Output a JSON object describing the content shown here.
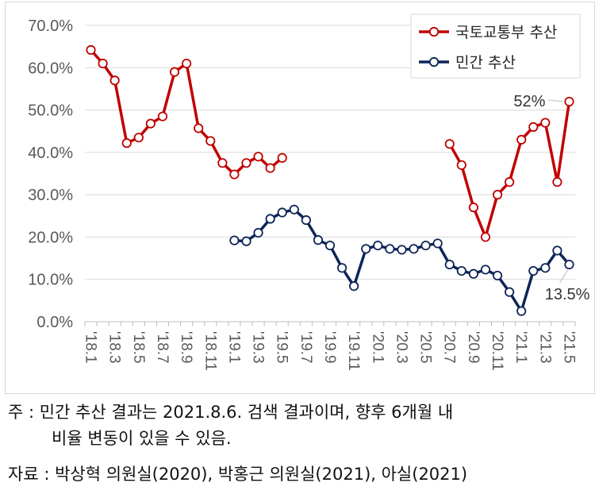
{
  "chart_data": {
    "type": "line",
    "x": [
      "'18.1",
      "'18.2",
      "'18.3",
      "'18.4",
      "'18.5",
      "'18.6",
      "'18.7",
      "'18.8",
      "'18.9",
      "'18.10",
      "'18.11",
      "'18.12",
      "'19.1",
      "'19.2",
      "'19.3",
      "'19.4",
      "'19.5",
      "'19.6",
      "'19.7",
      "'19.8",
      "'19.9",
      "'19.10",
      "'19.11",
      "'19.12",
      "'20.1",
      "'20.2",
      "'20.3",
      "'20.4",
      "'20.5",
      "'20.6",
      "'20.7",
      "'20.8",
      "'20.9",
      "'20.10",
      "'20.11",
      "'20.12",
      "'21.1",
      "'21.2",
      "'21.3",
      "'21.4",
      "'21.5"
    ],
    "x_tick_labels": [
      "'18.1",
      "'18.3",
      "'18.5",
      "'18.7",
      "'18.9",
      "'18.11",
      "'19.1",
      "'19.3",
      "'19.5",
      "'19.7",
      "'19.9",
      "'19.11",
      "'20.1",
      "'20.3",
      "'20.5",
      "'20.7",
      "'20.9",
      "'20.11",
      "'21.1",
      "'21.3",
      "'21.5"
    ],
    "y_ticks": [
      "0.0%",
      "10.0%",
      "20.0%",
      "30.0%",
      "40.0%",
      "50.0%",
      "60.0%",
      "70.0%"
    ],
    "ylim": [
      0,
      70
    ],
    "legend_position": "top-right",
    "series": [
      {
        "name": "국토교통부 추산",
        "color": "#c00000",
        "values": [
          64.2,
          61.0,
          57.0,
          42.2,
          43.5,
          46.8,
          48.5,
          59.0,
          61.0,
          45.7,
          42.7,
          37.5,
          34.8,
          37.5,
          39.0,
          36.3,
          38.7,
          null,
          null,
          null,
          null,
          null,
          null,
          null,
          null,
          null,
          null,
          null,
          null,
          null,
          42.0,
          37.0,
          27.0,
          20.0,
          30.0,
          33.0,
          43.0,
          46.0,
          47.0,
          33.0,
          52.0
        ]
      },
      {
        "name": "민간 추산",
        "color": "#0d2557",
        "values": [
          null,
          null,
          null,
          null,
          null,
          null,
          null,
          null,
          null,
          null,
          null,
          null,
          19.2,
          19.0,
          21.0,
          24.3,
          25.8,
          26.5,
          24.0,
          19.3,
          18.0,
          12.7,
          8.4,
          17.2,
          18.0,
          17.2,
          17.0,
          17.2,
          18.0,
          18.5,
          13.5,
          12.0,
          11.3,
          12.3,
          10.9,
          7.0,
          2.5,
          12.0,
          12.7,
          16.8,
          13.5
        ]
      }
    ],
    "annotations": [
      {
        "text": "52%",
        "series": 0,
        "index": 40
      },
      {
        "text": "13.5%",
        "series": 1,
        "index": 40
      }
    ]
  },
  "notes": {
    "line1": "주 : 민간 추산 결과는 2021.8.6. 검색 결과이며, 향후 6개월 내",
    "line2": "비율 변동이 있을 수 있음.",
    "source": "자료 : 박상혁 의원실(2020), 박홍근 의원실(2021), 아실(2021)"
  }
}
